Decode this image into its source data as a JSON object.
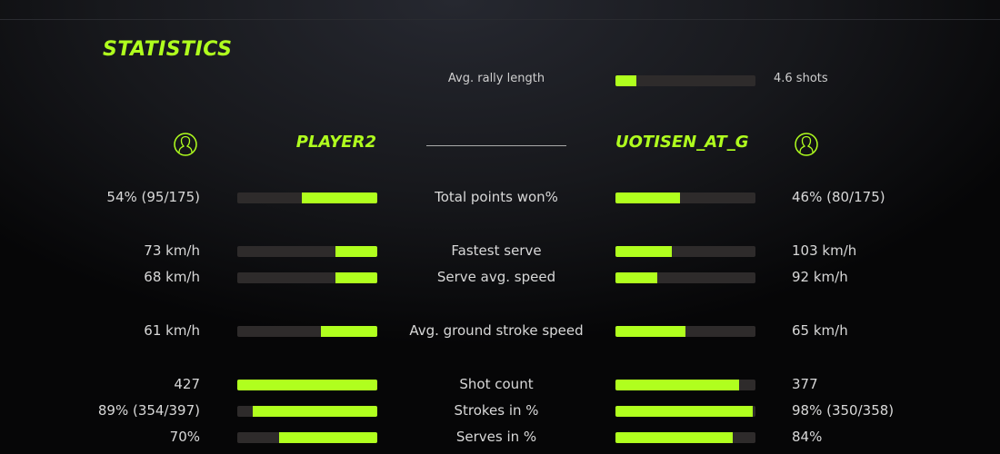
{
  "title": "STATISTICS",
  "accent": "#b0ff1e",
  "rally": {
    "label": "Avg. rally length",
    "value": "4.6 shots",
    "fill": 0.15
  },
  "players": {
    "left": {
      "name": "PLAYER2",
      "icon": "user-circle-icon"
    },
    "right": {
      "name": "UOTISEN_AT_G",
      "icon": "user-circle-icon"
    }
  },
  "rows": [
    {
      "label": "Total points won%",
      "left": "54% (95/175)",
      "right": "46% (80/175)",
      "left_fill": 0.54,
      "right_fill": 0.46
    },
    {
      "label": "Fastest serve",
      "left": "73 km/h",
      "right": "103 km/h",
      "left_fill": 0.3,
      "right_fill": 0.4
    },
    {
      "label": "Serve avg. speed",
      "left": "68 km/h",
      "right": "92 km/h",
      "left_fill": 0.3,
      "right_fill": 0.3
    },
    {
      "label": "Avg. ground stroke speed",
      "left": "61 km/h",
      "right": "65 km/h",
      "left_fill": 0.4,
      "right_fill": 0.5
    },
    {
      "label": "Shot count",
      "left": "427",
      "right": "377",
      "left_fill": 1.0,
      "right_fill": 0.88
    },
    {
      "label": "Strokes in %",
      "left": "89% (354/397)",
      "right": "98% (350/358)",
      "left_fill": 0.89,
      "right_fill": 0.98
    },
    {
      "label": "Serves in %",
      "left": "70%",
      "right": "84%",
      "left_fill": 0.7,
      "right_fill": 0.84
    }
  ]
}
